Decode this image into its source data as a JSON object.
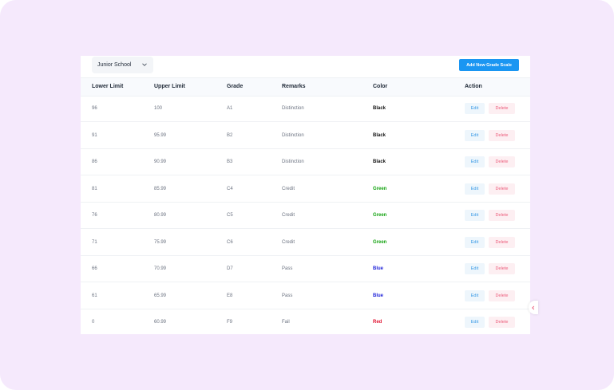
{
  "filter": {
    "school": "Junior School"
  },
  "toolbar": {
    "add_label": "Add New Grade Scale"
  },
  "table": {
    "headers": [
      "Lower Limit",
      "Upper Limit",
      "Grade",
      "Remarks",
      "Color",
      "Action"
    ],
    "edit_label": "Edit",
    "delete_label": "Delete",
    "rows": [
      {
        "lower": "96",
        "upper": "100",
        "grade": "A1",
        "remarks": "Distinction",
        "color": "Black"
      },
      {
        "lower": "91",
        "upper": "95.99",
        "grade": "B2",
        "remarks": "Distinction",
        "color": "Black"
      },
      {
        "lower": "86",
        "upper": "90.99",
        "grade": "B3",
        "remarks": "Distinction",
        "color": "Black"
      },
      {
        "lower": "81",
        "upper": "85.99",
        "grade": "C4",
        "remarks": "Credit",
        "color": "Green"
      },
      {
        "lower": "76",
        "upper": "80.99",
        "grade": "C5",
        "remarks": "Credit",
        "color": "Green"
      },
      {
        "lower": "71",
        "upper": "75.99",
        "grade": "C6",
        "remarks": "Credit",
        "color": "Green"
      },
      {
        "lower": "66",
        "upper": "70.99",
        "grade": "D7",
        "remarks": "Pass",
        "color": "Blue"
      },
      {
        "lower": "61",
        "upper": "65.99",
        "grade": "E8",
        "remarks": "Pass",
        "color": "Blue"
      },
      {
        "lower": "0",
        "upper": "60.99",
        "grade": "F9",
        "remarks": "Fail",
        "color": "Red"
      }
    ]
  },
  "colors": {
    "accent": "#1a96f2",
    "Black": "#111111",
    "Green": "#14a311",
    "Blue": "#1c1fd8",
    "Red": "#e0102f"
  }
}
